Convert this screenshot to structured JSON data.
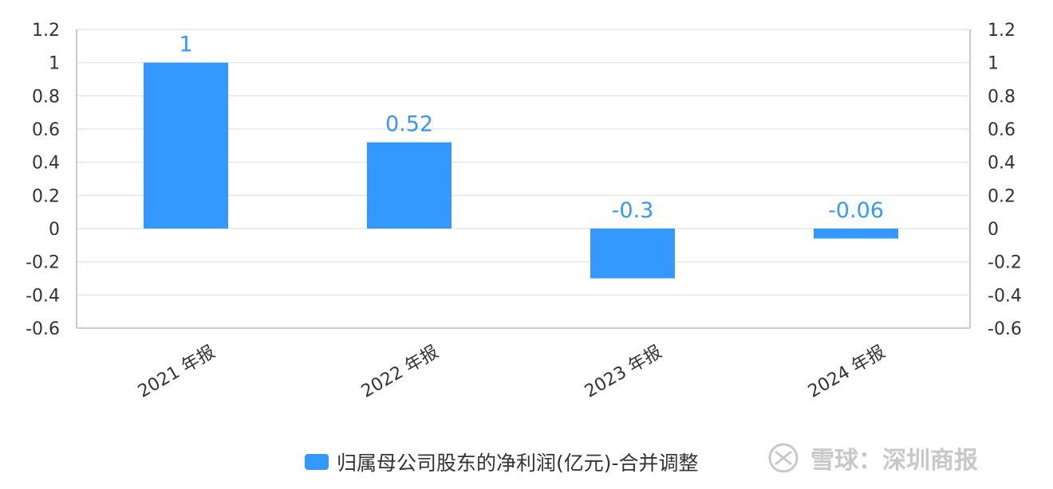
{
  "chart_data": {
    "type": "bar",
    "categories": [
      "2021 年报",
      "2022 年报",
      "2023 年报",
      "2024 年报"
    ],
    "series": [
      {
        "name": "归属母公司股东的净利润(亿元)-合并调整",
        "values": [
          1,
          0.52,
          -0.3,
          -0.06
        ],
        "color": "#3399ff"
      }
    ],
    "data_labels": [
      "1",
      "0.52",
      "-0.3",
      "-0.06"
    ],
    "y_ticks": [
      "1.2",
      "1",
      "0.8",
      "0.6",
      "0.4",
      "0.2",
      "0",
      "-0.2",
      "-0.4",
      "-0.6"
    ],
    "ylim": [
      -0.6,
      1.2
    ],
    "secondary_y_axis": true,
    "grid": true,
    "legend_position": "bottom"
  },
  "legend": {
    "label": "归属母公司股东的净利润(亿元)-合并调整",
    "color": "#3399ff"
  },
  "watermark": {
    "text": "雪球：深圳商报",
    "icon": "xueqiu-logo-icon"
  }
}
